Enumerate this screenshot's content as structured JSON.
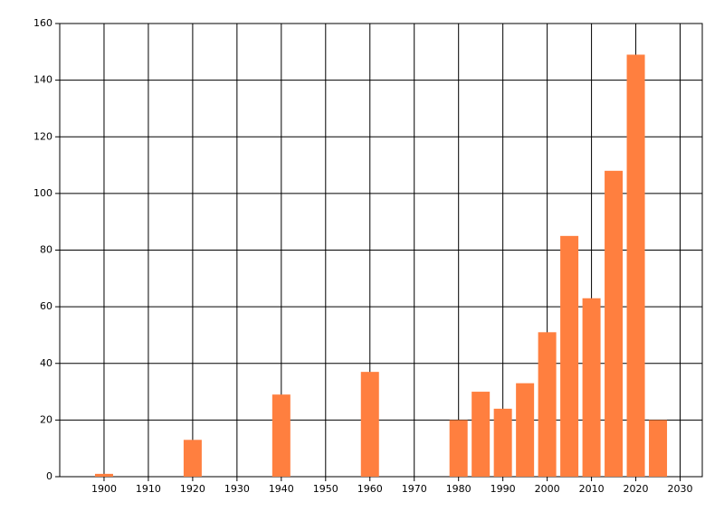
{
  "chart_data": {
    "type": "bar",
    "x": [
      1900,
      1920,
      1940,
      1960,
      1980,
      1985,
      1990,
      1995,
      2000,
      2005,
      2010,
      2015,
      2020,
      2025
    ],
    "values": [
      1,
      13,
      29,
      37,
      20,
      30,
      24,
      33,
      51,
      85,
      63,
      108,
      149,
      20
    ],
    "color": "#ff7f3f",
    "xlim": [
      1890,
      2035
    ],
    "xticks": [
      1900,
      1910,
      1920,
      1930,
      1940,
      1950,
      1960,
      1970,
      1980,
      1990,
      2000,
      2010,
      2020,
      2030
    ],
    "ylim": [
      0,
      160
    ],
    "yticks": [
      0,
      20,
      40,
      60,
      80,
      100,
      120,
      140,
      160
    ],
    "grid": true
  }
}
